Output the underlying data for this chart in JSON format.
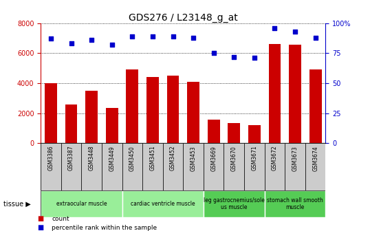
{
  "title": "GDS276 / L23148_g_at",
  "samples": [
    "GSM3386",
    "GSM3387",
    "GSM3448",
    "GSM3449",
    "GSM3450",
    "GSM3451",
    "GSM3452",
    "GSM3453",
    "GSM3669",
    "GSM3670",
    "GSM3671",
    "GSM3672",
    "GSM3673",
    "GSM3674"
  ],
  "counts": [
    4000,
    2600,
    3500,
    2350,
    4900,
    4400,
    4500,
    4100,
    1550,
    1350,
    1200,
    6600,
    6550,
    4900
  ],
  "percentiles": [
    87,
    83,
    86,
    82,
    89,
    89,
    89,
    88,
    75,
    72,
    71,
    96,
    93,
    88
  ],
  "bar_color": "#cc0000",
  "dot_color": "#0000cc",
  "ylim_left": [
    0,
    8000
  ],
  "ylim_right": [
    0,
    100
  ],
  "yticks_left": [
    0,
    2000,
    4000,
    6000,
    8000
  ],
  "yticks_right": [
    0,
    25,
    50,
    75,
    100
  ],
  "tissue_groups": [
    {
      "label": "extraocular muscle",
      "start": 0,
      "end": 3,
      "color": "#99ee99"
    },
    {
      "label": "cardiac ventricle muscle",
      "start": 4,
      "end": 7,
      "color": "#99ee99"
    },
    {
      "label": "leg gastrocnemius/sole\nus muscle",
      "start": 8,
      "end": 10,
      "color": "#55cc55"
    },
    {
      "label": "stomach wall smooth\nmuscle",
      "start": 11,
      "end": 13,
      "color": "#55cc55"
    }
  ],
  "tissue_label": "tissue",
  "legend_count_label": "count",
  "legend_pct_label": "percentile rank within the sample",
  "bg_color": "#ffffff",
  "tick_label_color_left": "#cc0000",
  "tick_label_color_right": "#0000cc",
  "sample_box_color": "#cccccc",
  "title_fontsize": 10,
  "tick_fontsize": 7,
  "bar_width": 0.6
}
